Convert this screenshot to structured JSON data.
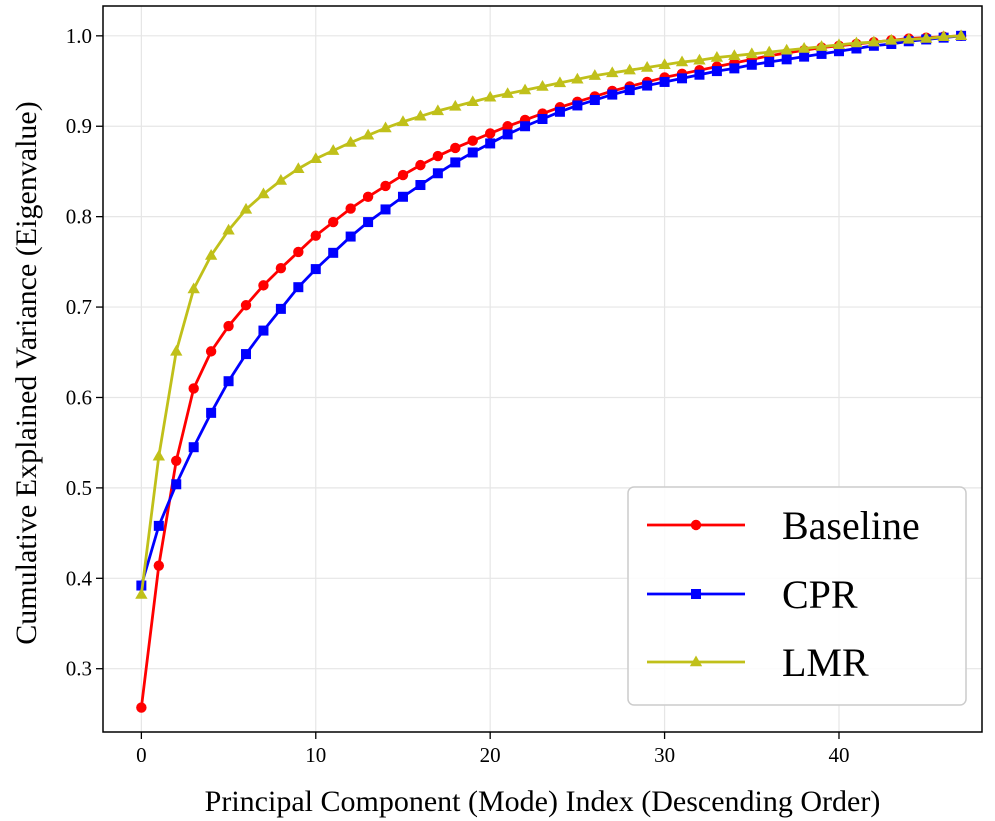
{
  "chart_data": {
    "type": "line",
    "title": "",
    "xlabel": "Principal Component (Mode) Index (Descending Order)",
    "ylabel": "Cumulative Explained Variance (Eigenvalue)",
    "xlim": [
      -2.2,
      48.2
    ],
    "ylim": [
      0.23,
      1.033
    ],
    "xticks": [
      0,
      10,
      20,
      30,
      40
    ],
    "xtick_labels": [
      "0",
      "10",
      "20",
      "30",
      "40"
    ],
    "yticks": [
      0.3,
      0.4,
      0.5,
      0.6,
      0.7,
      0.8,
      0.9,
      1.0
    ],
    "ytick_labels": [
      "0.3",
      "0.4",
      "0.5",
      "0.6",
      "0.7",
      "0.8",
      "0.9",
      "1.0"
    ],
    "grid": true,
    "legend_position": "bottom-right",
    "x": [
      0,
      1,
      2,
      3,
      4,
      5,
      6,
      7,
      8,
      9,
      10,
      11,
      12,
      13,
      14,
      15,
      16,
      17,
      18,
      19,
      20,
      21,
      22,
      23,
      24,
      25,
      26,
      27,
      28,
      29,
      30,
      31,
      32,
      33,
      34,
      35,
      36,
      37,
      38,
      39,
      40,
      41,
      42,
      43,
      44,
      45,
      46,
      47
    ],
    "series": [
      {
        "name": "Baseline",
        "color": "#ff0000",
        "marker": "circle",
        "values": [
          0.257,
          0.414,
          0.53,
          0.61,
          0.651,
          0.679,
          0.702,
          0.724,
          0.743,
          0.761,
          0.779,
          0.794,
          0.809,
          0.822,
          0.834,
          0.846,
          0.857,
          0.867,
          0.876,
          0.884,
          0.892,
          0.9,
          0.907,
          0.914,
          0.921,
          0.927,
          0.933,
          0.939,
          0.944,
          0.949,
          0.954,
          0.958,
          0.962,
          0.966,
          0.97,
          0.974,
          0.978,
          0.981,
          0.984,
          0.987,
          0.989,
          0.991,
          0.993,
          0.995,
          0.997,
          0.998,
          0.999,
          1.0
        ]
      },
      {
        "name": "CPR",
        "color": "#0000ff",
        "marker": "square",
        "values": [
          0.392,
          0.458,
          0.504,
          0.545,
          0.583,
          0.618,
          0.648,
          0.674,
          0.698,
          0.722,
          0.742,
          0.76,
          0.778,
          0.794,
          0.808,
          0.822,
          0.835,
          0.848,
          0.86,
          0.871,
          0.881,
          0.891,
          0.9,
          0.908,
          0.916,
          0.923,
          0.929,
          0.935,
          0.94,
          0.945,
          0.949,
          0.953,
          0.957,
          0.961,
          0.964,
          0.968,
          0.971,
          0.974,
          0.977,
          0.98,
          0.983,
          0.986,
          0.989,
          0.991,
          0.994,
          0.996,
          0.998,
          1.0
        ]
      },
      {
        "name": "LMR",
        "color": "#c0c01a",
        "marker": "triangle",
        "values": [
          0.382,
          0.535,
          0.651,
          0.72,
          0.757,
          0.785,
          0.808,
          0.825,
          0.84,
          0.853,
          0.864,
          0.873,
          0.882,
          0.89,
          0.898,
          0.905,
          0.911,
          0.917,
          0.922,
          0.927,
          0.932,
          0.936,
          0.94,
          0.944,
          0.948,
          0.952,
          0.956,
          0.959,
          0.962,
          0.965,
          0.968,
          0.971,
          0.973,
          0.976,
          0.978,
          0.98,
          0.982,
          0.984,
          0.986,
          0.988,
          0.99,
          0.992,
          0.993,
          0.995,
          0.996,
          0.997,
          0.999,
          1.0
        ]
      }
    ]
  }
}
